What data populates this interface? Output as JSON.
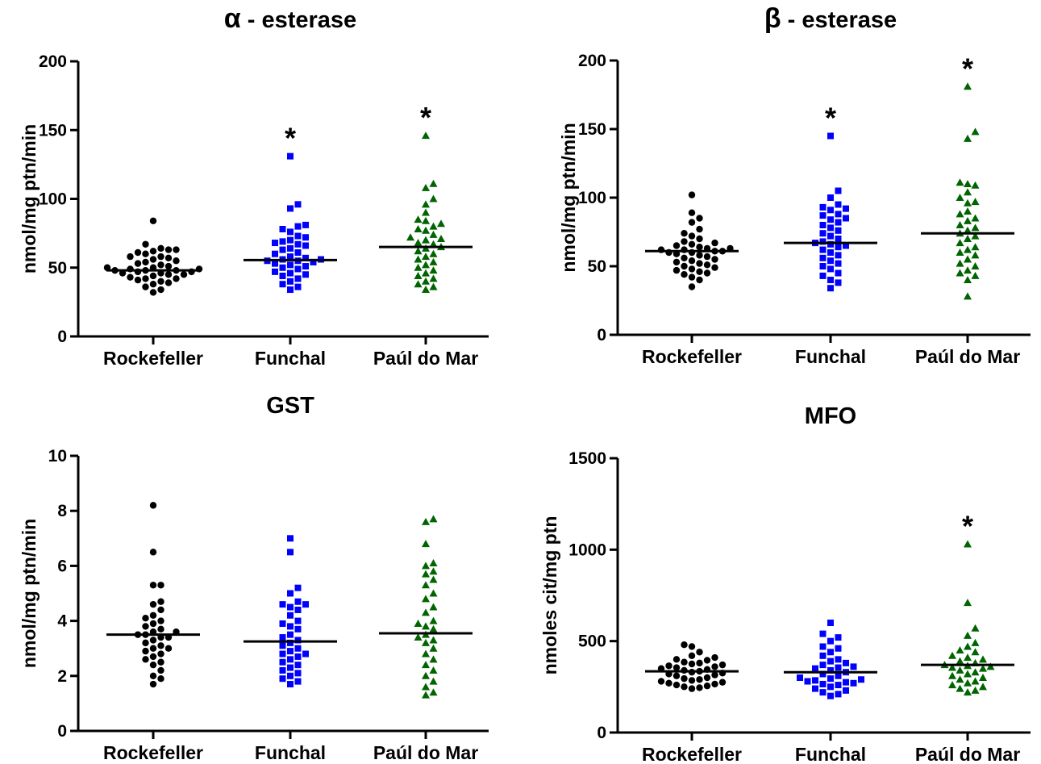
{
  "colors": {
    "Rockefeller": "#000000",
    "Funchal": "#0000ff",
    "Paul_do_Mar": "#006400"
  },
  "chart_data": [
    {
      "type": "scatter",
      "title_symbol": "α",
      "title": "- esterase",
      "ylabel": "nmol/mg ptn/min",
      "ylim": [
        0,
        200
      ],
      "yticks": [
        "0",
        "50",
        "100",
        "150",
        "200"
      ],
      "categories": [
        "Rockefeller",
        "Funchal",
        "Paúl do Mar"
      ],
      "markers": [
        "circle",
        "square",
        "triangle"
      ],
      "means": [
        48,
        55.5,
        65
      ],
      "significance": [
        "",
        "*",
        "*"
      ],
      "series": [
        {
          "values": [
            84,
            67,
            64,
            63,
            63,
            62,
            61,
            60,
            58,
            58,
            57,
            56,
            55,
            54,
            53,
            52,
            51,
            50,
            50,
            49,
            49,
            48,
            48,
            48,
            47,
            47,
            46,
            46,
            45,
            45,
            44,
            43,
            42,
            42,
            41,
            40,
            39,
            38,
            36,
            34,
            32
          ]
        },
        {
          "values": [
            131,
            96,
            93,
            81,
            80,
            78,
            76,
            73,
            72,
            70,
            69,
            68,
            67,
            66,
            64,
            63,
            61,
            60,
            58,
            57,
            56,
            56,
            55,
            55,
            54,
            53,
            52,
            51,
            50,
            49,
            47,
            46,
            45,
            44,
            42,
            40,
            38,
            36,
            34
          ]
        },
        {
          "values": [
            146,
            111,
            108,
            100,
            96,
            90,
            85,
            84,
            82,
            80,
            78,
            77,
            74,
            72,
            71,
            70,
            68,
            67,
            65,
            64,
            62,
            60,
            58,
            56,
            54,
            52,
            50,
            48,
            46,
            44,
            42,
            40,
            38,
            36,
            34
          ]
        }
      ]
    },
    {
      "type": "scatter",
      "title_symbol": "β",
      "title": "- esterase",
      "ylabel": "nmol/mg ptn/min",
      "ylim": [
        0,
        200
      ],
      "yticks": [
        "0",
        "50",
        "100",
        "150",
        "200"
      ],
      "categories": [
        "Rockefeller",
        "Funchal",
        "Paúl do Mar"
      ],
      "markers": [
        "circle",
        "square",
        "triangle"
      ],
      "means": [
        61,
        67,
        74
      ],
      "significance": [
        "",
        "*",
        "*"
      ],
      "series": [
        {
          "values": [
            102,
            89,
            85,
            82,
            77,
            74,
            72,
            70,
            68,
            67,
            66,
            65,
            64,
            63,
            63,
            62,
            62,
            61,
            61,
            60,
            60,
            59,
            58,
            57,
            56,
            55,
            54,
            53,
            52,
            51,
            50,
            49,
            48,
            47,
            46,
            45,
            44,
            42,
            40,
            35
          ]
        },
        {
          "values": [
            145,
            105,
            100,
            95,
            93,
            92,
            91,
            88,
            87,
            85,
            84,
            82,
            80,
            78,
            76,
            74,
            72,
            70,
            68,
            67,
            66,
            65,
            64,
            62,
            60,
            58,
            56,
            54,
            52,
            50,
            48,
            45,
            43,
            40,
            38,
            34
          ]
        },
        {
          "values": [
            181,
            148,
            143,
            111,
            110,
            109,
            104,
            100,
            97,
            96,
            90,
            88,
            85,
            83,
            80,
            78,
            76,
            74,
            72,
            70,
            67,
            64,
            62,
            60,
            58,
            55,
            52,
            50,
            47,
            45,
            43,
            40,
            28
          ]
        }
      ]
    },
    {
      "type": "scatter",
      "title": "GST",
      "ylabel": "nmol/mg ptn/min",
      "ylim": [
        0,
        10
      ],
      "yticks": [
        "0",
        "2",
        "4",
        "6",
        "8",
        "10"
      ],
      "categories": [
        "Rockefeller",
        "Funchal",
        "Paúl do Mar"
      ],
      "markers": [
        "circle",
        "square",
        "triangle"
      ],
      "means": [
        3.5,
        3.25,
        3.55
      ],
      "significance": [
        "",
        "",
        ""
      ],
      "series": [
        {
          "values": [
            8.2,
            6.5,
            5.3,
            5.3,
            4.7,
            4.6,
            4.4,
            4.2,
            4.1,
            4.0,
            3.9,
            3.8,
            3.7,
            3.6,
            3.6,
            3.5,
            3.5,
            3.4,
            3.4,
            3.3,
            3.2,
            3.1,
            3.0,
            3.0,
            2.9,
            2.8,
            2.7,
            2.6,
            2.5,
            2.4,
            2.2,
            2.0,
            1.9,
            1.7
          ]
        },
        {
          "values": [
            7.0,
            6.5,
            5.2,
            5.0,
            4.7,
            4.6,
            4.6,
            4.5,
            4.4,
            4.2,
            4.0,
            3.9,
            3.8,
            3.7,
            3.5,
            3.4,
            3.3,
            3.2,
            3.1,
            3.0,
            2.9,
            2.8,
            2.8,
            2.7,
            2.6,
            2.5,
            2.4,
            2.3,
            2.2,
            2.1,
            2.0,
            1.9,
            1.8,
            1.7
          ]
        },
        {
          "values": [
            7.7,
            7.6,
            6.8,
            6.1,
            6.0,
            5.8,
            5.7,
            5.5,
            5.3,
            5.0,
            4.8,
            4.5,
            4.3,
            4.0,
            3.9,
            3.8,
            3.7,
            3.5,
            3.4,
            3.3,
            3.2,
            3.0,
            2.8,
            2.6,
            2.4,
            2.2,
            2.0,
            1.8,
            1.6,
            1.4,
            1.3
          ]
        }
      ]
    },
    {
      "type": "scatter",
      "title": "MFO",
      "ylabel": "nmoles cit/mg ptn",
      "ylim": [
        0,
        1500
      ],
      "yticks": [
        "0",
        "500",
        "1000",
        "1500"
      ],
      "categories": [
        "Rockefeller",
        "Funchal",
        "Paúl do Mar"
      ],
      "markers": [
        "circle",
        "square",
        "triangle"
      ],
      "means": [
        335,
        330,
        370
      ],
      "significance": [
        "",
        "",
        "*"
      ],
      "series": [
        {
          "values": [
            480,
            470,
            440,
            420,
            410,
            400,
            395,
            385,
            380,
            375,
            370,
            365,
            360,
            355,
            350,
            345,
            340,
            335,
            330,
            325,
            320,
            315,
            310,
            300,
            295,
            290,
            285,
            280,
            275,
            270,
            265,
            260,
            255,
            250,
            245,
            240
          ]
        },
        {
          "values": [
            600,
            540,
            520,
            500,
            470,
            460,
            440,
            420,
            400,
            390,
            380,
            370,
            360,
            355,
            350,
            340,
            330,
            320,
            310,
            300,
            295,
            290,
            285,
            280,
            275,
            270,
            265,
            260,
            250,
            240,
            230,
            220,
            210,
            200
          ]
        },
        {
          "values": [
            1030,
            710,
            570,
            530,
            490,
            470,
            450,
            440,
            420,
            410,
            400,
            390,
            380,
            370,
            365,
            360,
            355,
            350,
            340,
            330,
            320,
            310,
            300,
            290,
            280,
            270,
            260,
            250,
            240,
            230,
            220
          ]
        }
      ]
    }
  ]
}
